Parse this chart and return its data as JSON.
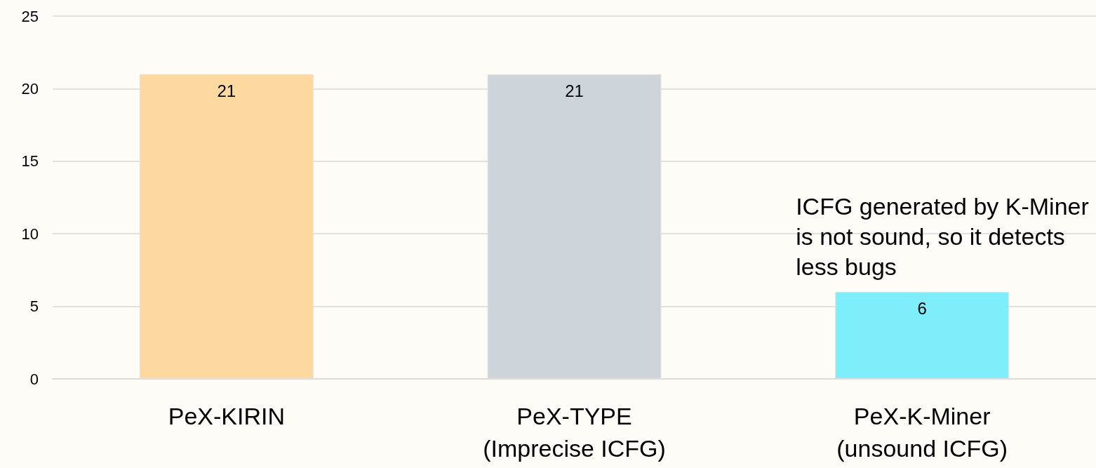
{
  "chart_data": {
    "type": "bar",
    "categories": [
      "PeX-KIRIN",
      "PeX-TYPE\n(Imprecise ICFG)",
      "PeX-K-Miner\n(unsound ICFG)"
    ],
    "values": [
      21,
      21,
      6
    ],
    "colors": [
      "#fdd9a0",
      "#cdd4da",
      "#7eeefa"
    ],
    "ylim": [
      0,
      25
    ],
    "yticks": [
      0,
      5,
      10,
      15,
      20,
      25
    ],
    "grid": "y",
    "data_labels": true,
    "annotations": [
      {
        "text": "ICFG generated by K-Miner is not sound, so it detects less bugs",
        "x": "PeX-K-Miner\n(unsound ICFG)",
        "y": 6
      }
    ]
  }
}
